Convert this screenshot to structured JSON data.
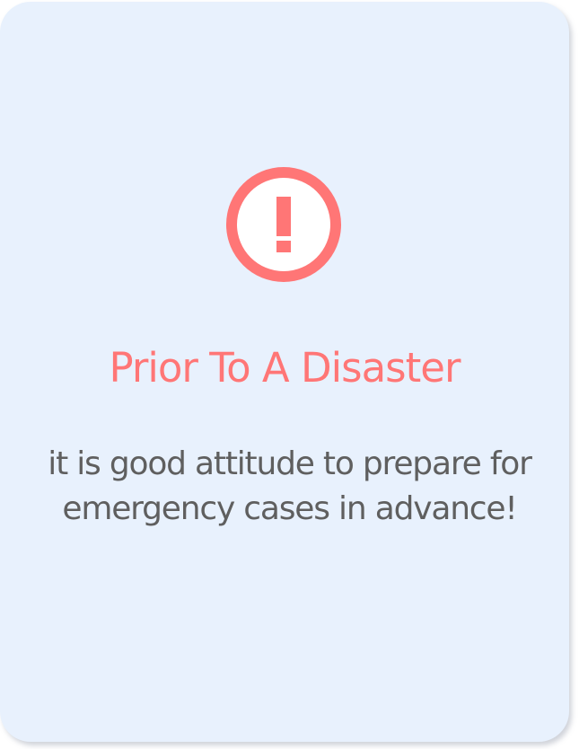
{
  "card": {
    "icon": "exclamation-circle-icon",
    "title": "Prior To A Disaster",
    "message_lines": [
      "it is good attitude to prepare for",
      "emergency cases in advance!"
    ]
  },
  "colors": {
    "card_background": "#e8f1fd",
    "accent": "#ff7676",
    "text": "#5f5f5f"
  }
}
